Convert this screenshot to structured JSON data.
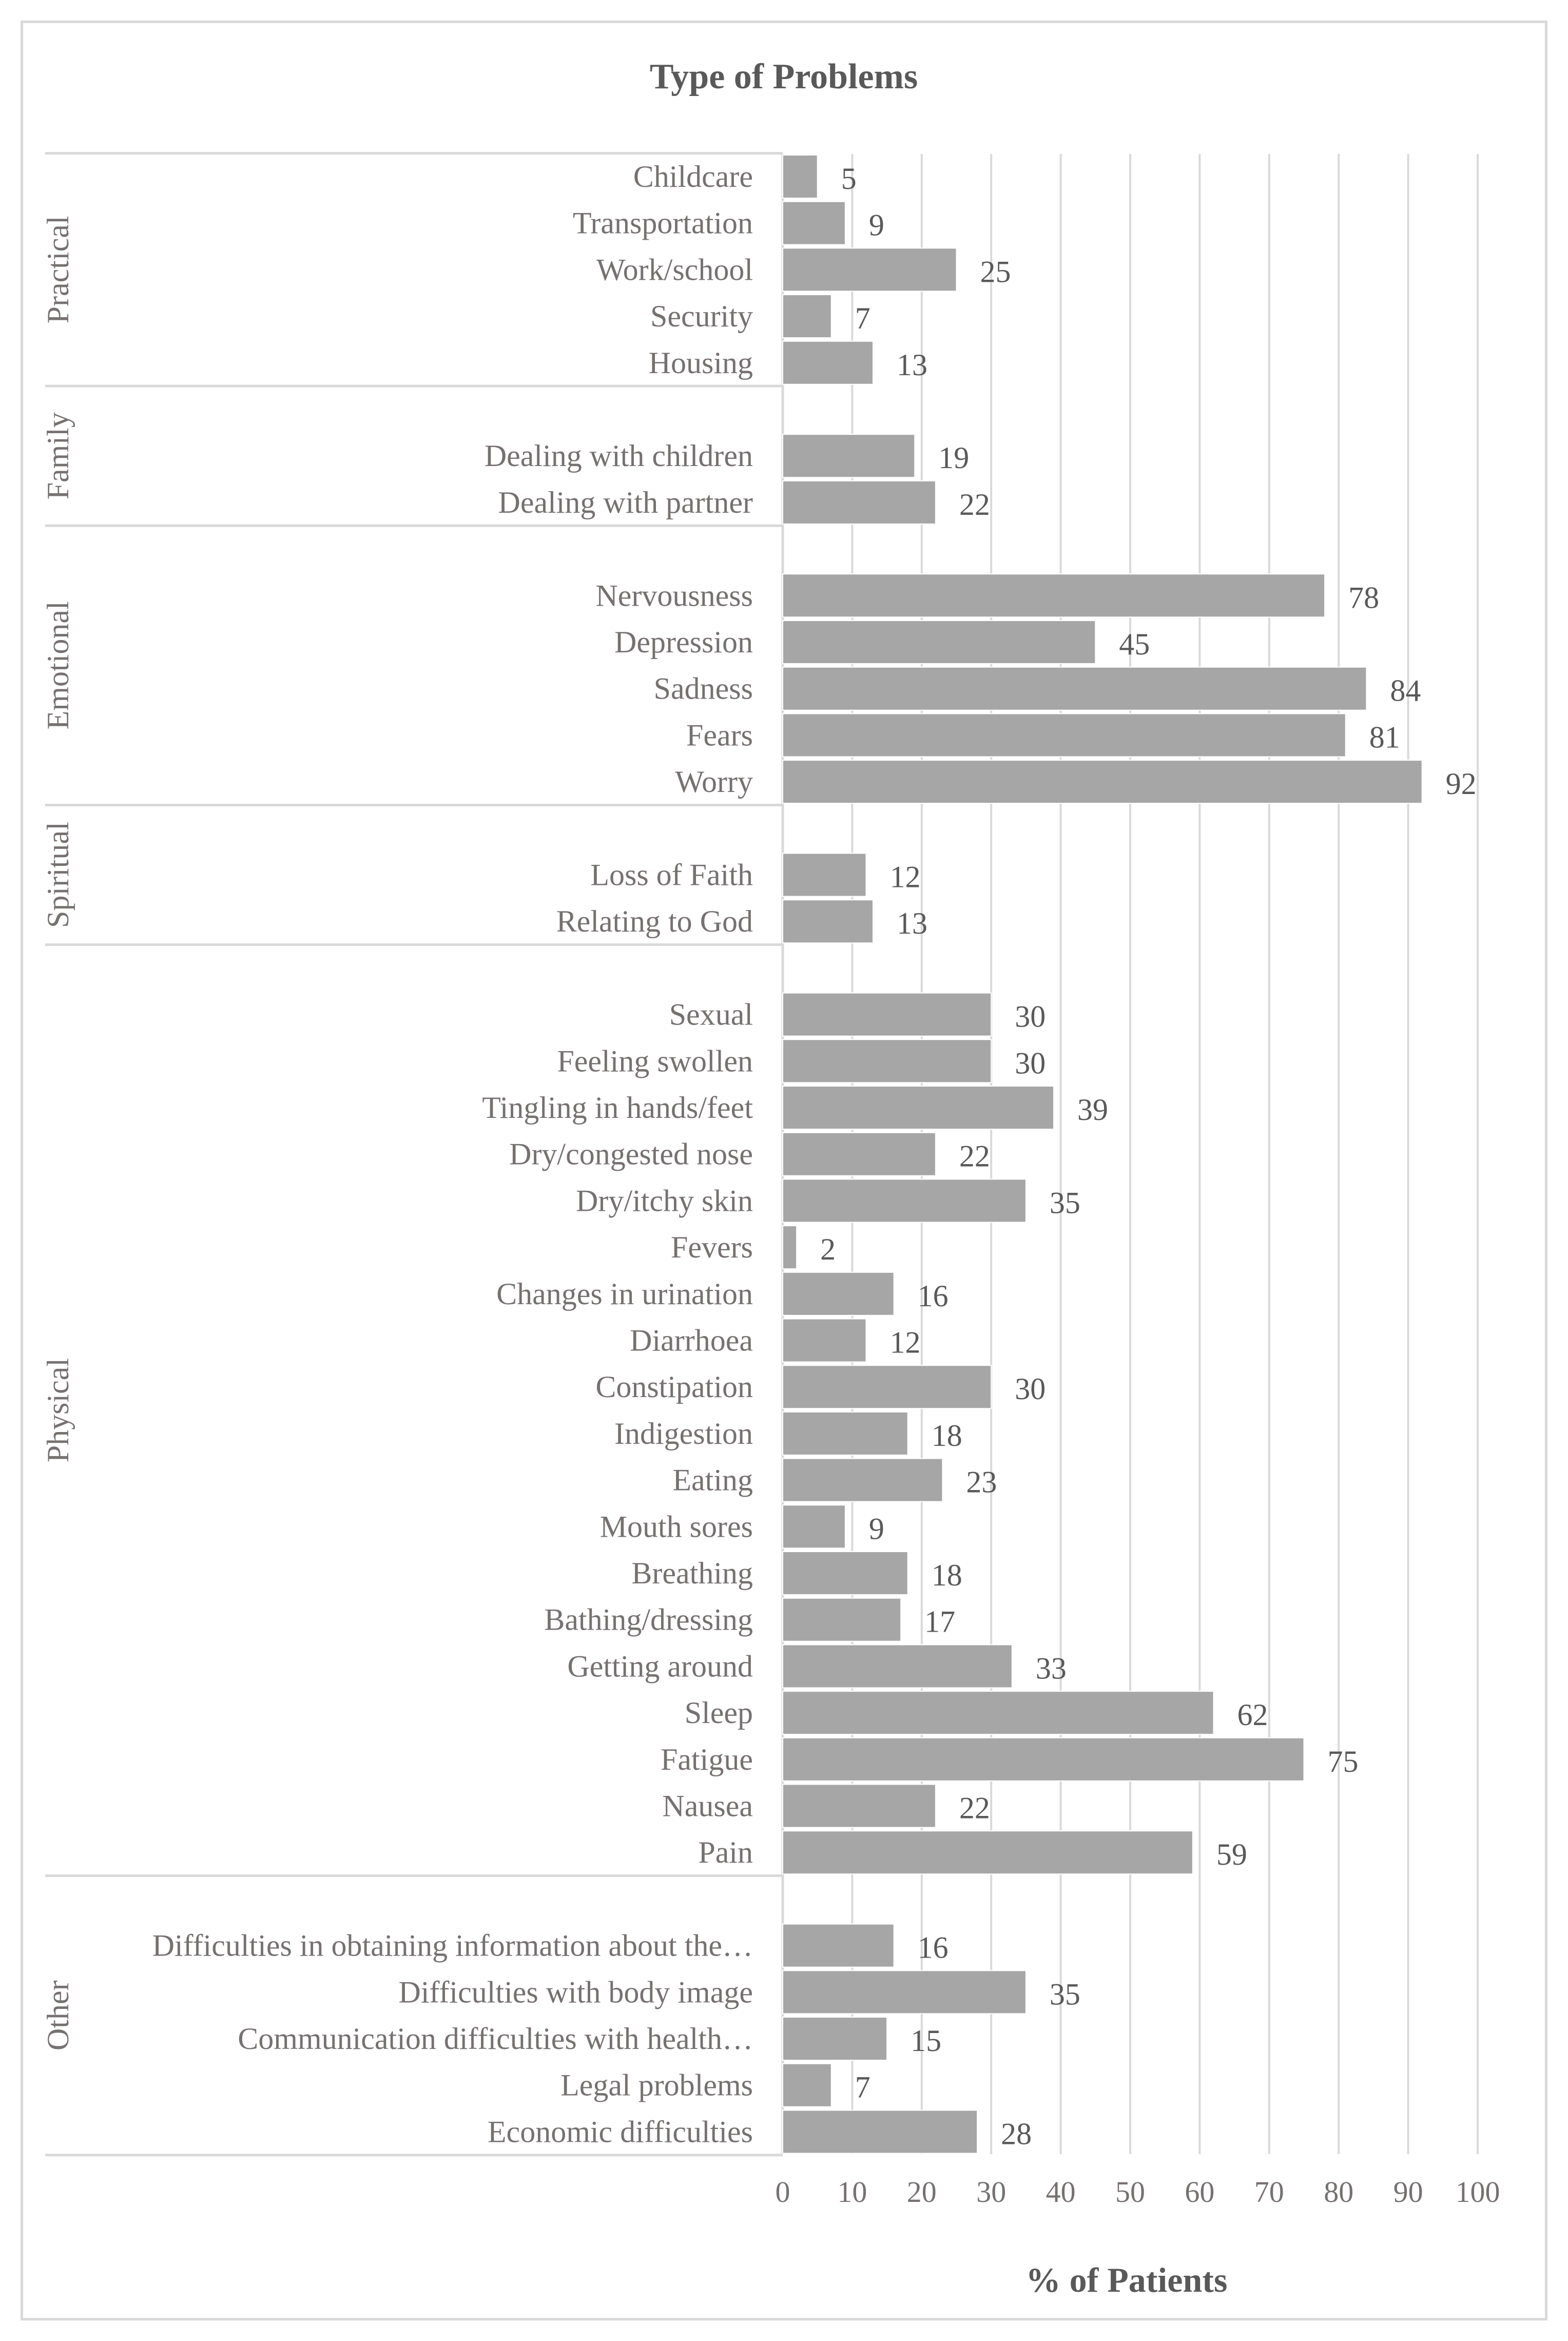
{
  "chart_data": {
    "type": "bar",
    "orientation": "horizontal",
    "title": "Type of Problems",
    "xlabel": "% of Patients",
    "ylabel": "",
    "xlim": [
      0,
      100
    ],
    "xticks": [
      0,
      10,
      20,
      30,
      40,
      50,
      60,
      70,
      80,
      90,
      100
    ],
    "grid": true,
    "legend": "none",
    "bar_color": "#a6a6a6",
    "grid_color": "#d9d9d9",
    "groups": [
      {
        "name": "Practical",
        "categories": [
          "Childcare",
          "Transportation",
          "Work/school",
          "Security",
          "Housing"
        ],
        "values": [
          5,
          9,
          25,
          7,
          13
        ]
      },
      {
        "name": "Family",
        "categories": [
          "",
          "Dealing with children",
          "Dealing with partner"
        ],
        "values": [
          null,
          19,
          22
        ]
      },
      {
        "name": "Emotional",
        "categories": [
          "",
          "Nervousness",
          "Depression",
          "Sadness",
          "Fears",
          "Worry"
        ],
        "values": [
          null,
          78,
          45,
          84,
          81,
          92
        ]
      },
      {
        "name": "Spiritual",
        "categories": [
          "",
          "Loss of Faith",
          "Relating to God"
        ],
        "values": [
          null,
          12,
          13
        ]
      },
      {
        "name": "Physical",
        "categories": [
          "",
          "Sexual",
          "Feeling swollen",
          "Tingling in hands/feet",
          "Dry/congested nose",
          "Dry/itchy skin",
          "Fevers",
          "Changes in urination",
          "Diarrhoea",
          "Constipation",
          "Indigestion",
          "Eating",
          "Mouth sores",
          "Breathing",
          "Bathing/dressing",
          "Getting around",
          "Sleep",
          "Fatigue",
          "Nausea",
          "Pain"
        ],
        "values": [
          null,
          30,
          30,
          39,
          22,
          35,
          2,
          16,
          12,
          30,
          18,
          23,
          9,
          18,
          17,
          33,
          62,
          75,
          22,
          59
        ]
      },
      {
        "name": "Other",
        "categories": [
          "",
          "Difficulties in obtaining information about the…",
          "Difficulties with body image",
          "Communication difficulties with health…",
          "Legal problems",
          "Economic difficulties"
        ],
        "values": [
          null,
          16,
          35,
          15,
          7,
          28
        ]
      }
    ]
  }
}
